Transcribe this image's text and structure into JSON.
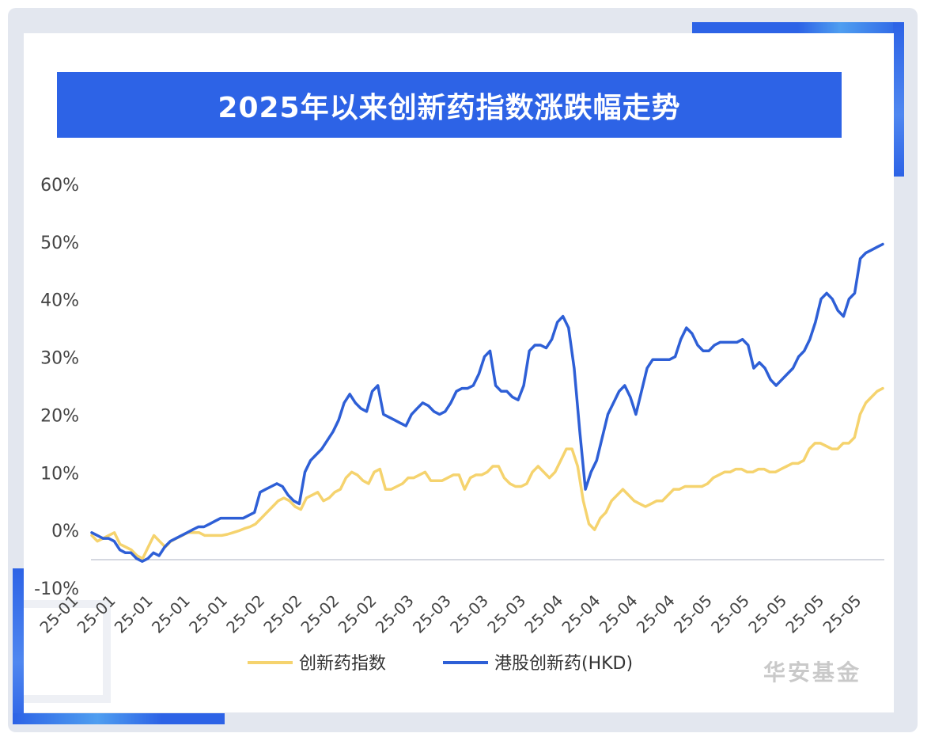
{
  "title": "2025年以来创新药指数涨跌幅走势",
  "watermark": "华安基金",
  "colors": {
    "title_bar": "#2d63e6",
    "index_line": "#f5d36e",
    "hk_line": "#2e5fd6",
    "accent": "#3a6ff0"
  },
  "chart_data": {
    "type": "line",
    "y_axis": {
      "min": -10,
      "max": 60,
      "ticks": [
        "60%",
        "50%",
        "40%",
        "30%",
        "20%",
        "10%",
        "0%",
        "-10%"
      ],
      "tick_values": [
        60,
        50,
        40,
        30,
        20,
        10,
        0,
        -10
      ]
    },
    "x_axis": {
      "tick_labels": [
        "25-01",
        "25-01",
        "25-01",
        "25-01",
        "25-01",
        "25-02",
        "25-02",
        "25-02",
        "25-02",
        "25-03",
        "25-03",
        "25-03",
        "25-03",
        "25-04",
        "25-04",
        "25-04",
        "25-04",
        "25-05",
        "25-05",
        "25-05",
        "25-05",
        "25-05"
      ]
    },
    "series": [
      {
        "name": "创新药指数",
        "color": "#f5d36e",
        "values": [
          -1,
          -2,
          -1.5,
          -1,
          -0.5,
          -2.5,
          -3,
          -3.5,
          -4.5,
          -5,
          -3,
          -1,
          -2,
          -3,
          -2,
          -1.5,
          -1,
          -0.5,
          -0.5,
          -0.5,
          -1,
          -1,
          -1,
          -1,
          -0.8,
          -0.5,
          -0.2,
          0.2,
          0.5,
          1,
          2,
          3,
          4,
          5,
          5.5,
          5,
          4,
          3.5,
          5.5,
          6,
          6.5,
          5,
          5.5,
          6.5,
          7,
          9,
          10,
          9.5,
          8.5,
          8,
          10,
          10.5,
          7,
          7,
          7.5,
          8,
          9,
          9,
          9.5,
          10,
          8.5,
          8.5,
          8.5,
          9,
          9.5,
          9.5,
          7,
          9,
          9.5,
          9.5,
          10,
          11,
          11,
          9,
          8,
          7.5,
          7.5,
          8,
          10,
          11,
          10,
          9,
          10,
          12,
          14,
          14,
          11,
          5,
          1,
          0,
          2,
          3,
          5,
          6,
          7,
          6,
          5,
          4.5,
          4,
          4.5,
          5,
          5,
          6,
          7,
          7,
          7.5,
          7.5,
          7.5,
          7.5,
          8,
          9,
          9.5,
          10,
          10,
          10.5,
          10.5,
          10,
          10,
          10.5,
          10.5,
          10,
          10,
          10.5,
          11,
          11.5,
          11.5,
          12,
          14,
          15,
          15,
          14.5,
          14,
          14,
          15,
          15,
          16,
          20,
          22,
          23,
          24,
          24.5
        ]
      },
      {
        "name": "港股创新药(HKD)",
        "color": "#2e5fd6",
        "values": [
          -0.5,
          -1,
          -1.5,
          -1.5,
          -2,
          -3.5,
          -4,
          -4,
          -5,
          -5.5,
          -5,
          -4,
          -4.5,
          -3,
          -2,
          -1.5,
          -1,
          -0.5,
          0,
          0.5,
          0.5,
          1,
          1.5,
          2,
          2,
          2,
          2,
          2,
          2.5,
          3,
          6.5,
          7,
          7.5,
          8,
          7.5,
          6,
          5,
          4.5,
          10,
          12,
          13,
          14,
          15.5,
          17,
          19,
          22,
          23.5,
          22,
          21,
          20.5,
          24,
          25,
          20,
          19.5,
          19,
          18.5,
          18,
          20,
          21,
          22,
          21.5,
          20.5,
          20,
          20.5,
          22,
          24,
          24.5,
          24.5,
          25,
          27,
          30,
          31,
          25,
          24,
          24,
          23,
          22.5,
          25,
          31,
          32,
          32,
          31.5,
          33,
          36,
          37,
          35,
          28,
          17,
          7,
          10,
          12,
          16,
          20,
          22,
          24,
          25,
          23,
          20,
          24,
          28,
          29.5,
          29.5,
          29.5,
          29.5,
          30,
          33,
          35,
          34,
          32,
          31,
          31,
          32,
          32.5,
          32.5,
          32.5,
          32.5,
          33,
          32,
          28,
          29,
          28,
          26,
          25,
          26,
          27,
          28,
          30,
          31,
          33,
          36,
          40,
          41,
          40,
          38,
          37,
          40,
          41,
          47,
          48,
          48.5,
          49,
          49.5
        ]
      }
    ],
    "legend": [
      "创新药指数",
      "港股创新药(HKD)"
    ],
    "legend_placement": "bottom"
  }
}
